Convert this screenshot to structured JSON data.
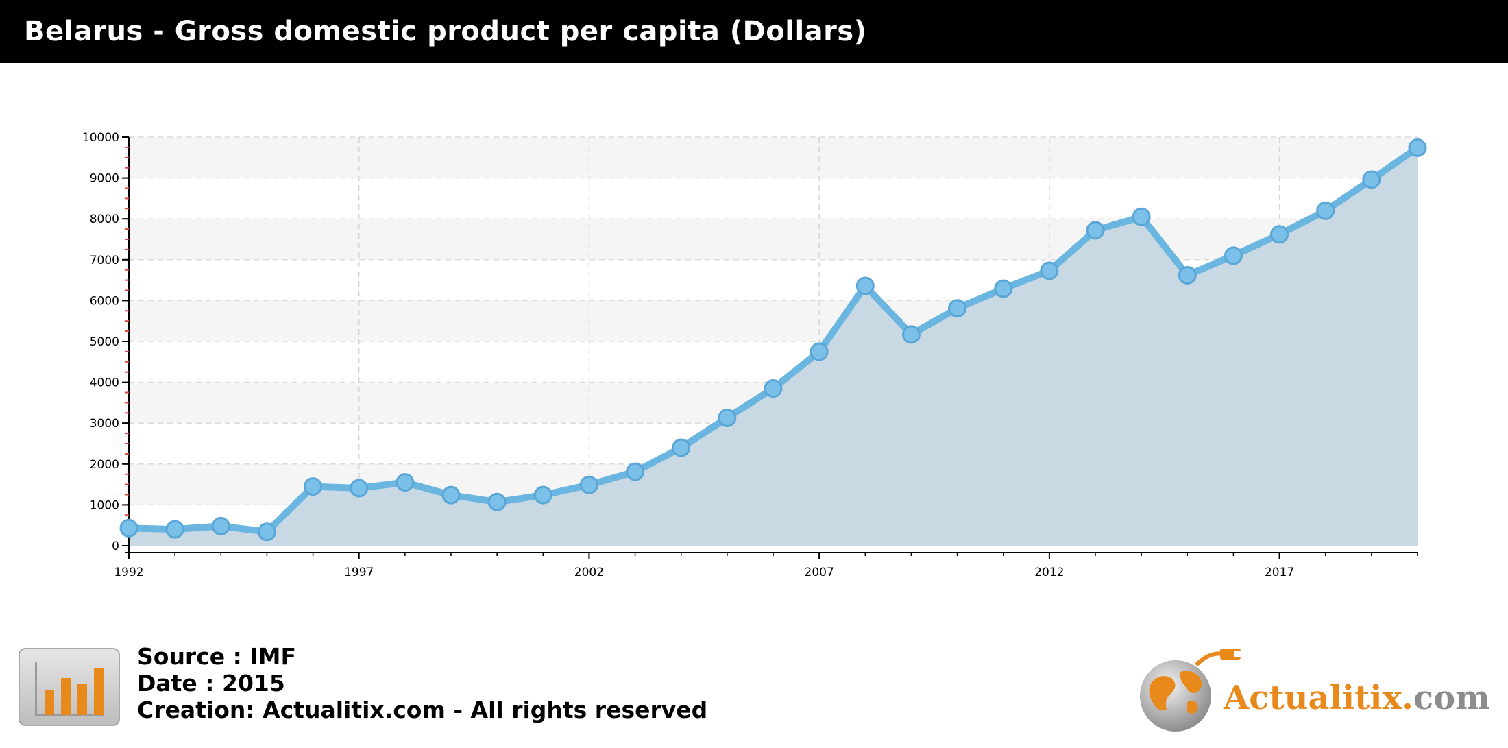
{
  "header": {
    "title": "Belarus - Gross domestic product per capita (Dollars)"
  },
  "chart_data": {
    "type": "area",
    "title": "Belarus - Gross domestic product per capita (Dollars)",
    "xlabel": "",
    "ylabel": "",
    "x": [
      1992,
      1993,
      1994,
      1995,
      1996,
      1997,
      1998,
      1999,
      2000,
      2001,
      2002,
      2003,
      2004,
      2005,
      2006,
      2007,
      2008,
      2009,
      2010,
      2011,
      2012,
      2013,
      2014,
      2015,
      2016,
      2017,
      2018,
      2019,
      2020
    ],
    "values": [
      430,
      400,
      480,
      340,
      1450,
      1410,
      1550,
      1240,
      1070,
      1240,
      1490,
      1810,
      2400,
      3130,
      3850,
      4750,
      6360,
      5170,
      5810,
      6290,
      6730,
      7720,
      8050,
      6620,
      7100,
      7620,
      8200,
      8960,
      9740
    ],
    "xlim": [
      1992,
      2020
    ],
    "ylim": [
      0,
      10000
    ],
    "x_ticks": [
      "1992",
      "1997",
      "2002",
      "2007",
      "2012",
      "2017"
    ],
    "y_ticks": [
      "0",
      "1000",
      "2000",
      "3000",
      "4000",
      "5000",
      "6000",
      "7000",
      "8000",
      "9000",
      "10000"
    ],
    "grid": true,
    "colors": {
      "line": "#6bb6e0",
      "marker_fill": "#7ac0e8",
      "marker_stroke": "#5aa6d6",
      "area": "#c9d9e3",
      "band_light": "#f5f5f5",
      "band_white": "#ffffff",
      "axis_tick": "#e0403a"
    }
  },
  "footer": {
    "source": "Source : IMF",
    "date": "Date : 2015",
    "creation": "Creation: Actualitix.com - All rights reserved",
    "icon": "bar-chart-icon"
  },
  "brand": {
    "name": "Actualitix",
    "dot": ".",
    "tld": "com",
    "icon": "globe-usb-icon"
  }
}
